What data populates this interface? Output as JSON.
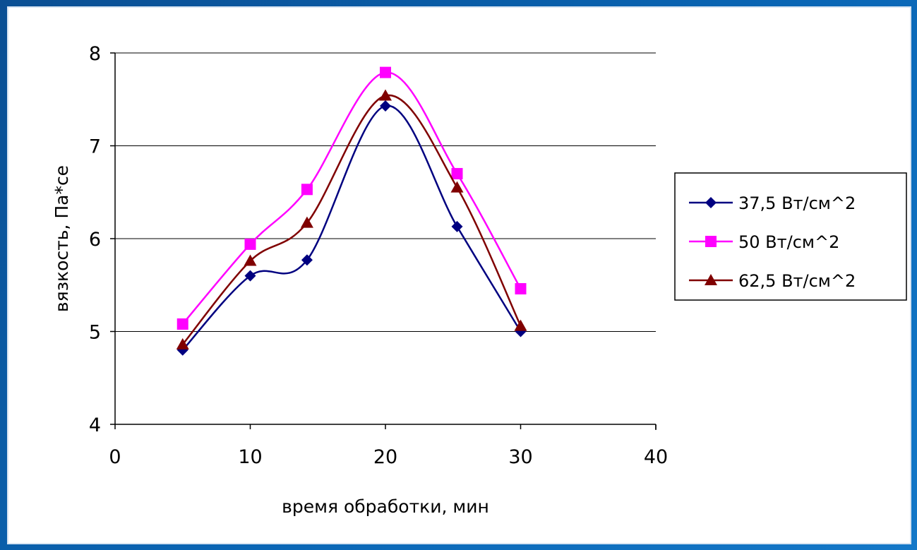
{
  "colors": {
    "frame": "#0a5ea8",
    "panel": "#ffffff",
    "gridline": "#000000"
  },
  "chart_data": {
    "type": "line",
    "title": "",
    "xlabel": "время обработки, мин",
    "ylabel": "вязкость, Па*се",
    "xlim": [
      0,
      40
    ],
    "ylim": [
      4,
      8
    ],
    "xticks": [
      0,
      10,
      20,
      30,
      40
    ],
    "yticks": [
      4,
      5,
      6,
      7,
      8
    ],
    "x_tick_labels": [
      "0",
      "10",
      "20",
      "30",
      "40"
    ],
    "y_tick_labels": [
      "4",
      "5",
      "6",
      "7",
      "8"
    ],
    "grid": "horizontal",
    "smooth": true,
    "legend_position": "right",
    "series": [
      {
        "name": "37,5 Вт/см^2",
        "color": "#000080",
        "marker": "diamond",
        "x": [
          5,
          10,
          14.2,
          20,
          25.3,
          30
        ],
        "y": [
          4.8,
          5.6,
          5.77,
          7.43,
          6.13,
          5.0
        ]
      },
      {
        "name": "50 Вт/см^2",
        "color": "#ff00ff",
        "marker": "square",
        "x": [
          5,
          10,
          14.2,
          20,
          25.3,
          30
        ],
        "y": [
          5.08,
          5.94,
          6.53,
          7.79,
          6.7,
          5.46
        ]
      },
      {
        "name": "62,5 Вт/см^2",
        "color": "#800000",
        "marker": "triangle",
        "x": [
          5,
          10,
          14.2,
          20,
          25.3,
          30
        ],
        "y": [
          4.86,
          5.76,
          6.17,
          7.54,
          6.55,
          5.06
        ]
      }
    ]
  }
}
